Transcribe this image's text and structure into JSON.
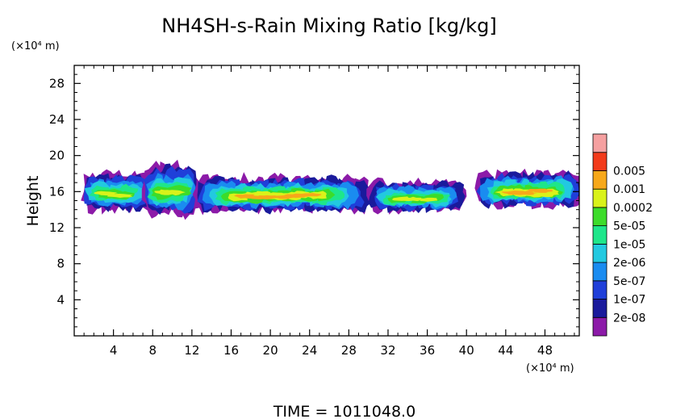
{
  "chart_data": {
    "type": "heatmap",
    "title": "NH4SH-s-Rain Mixing Ratio [kg/kg]",
    "ylabel": "Height",
    "y_unit": "(×10⁴ m)",
    "x_unit": "(×10⁴ m)",
    "xlim": [
      0,
      51.5
    ],
    "ylim": [
      0,
      30
    ],
    "x_ticks": [
      4,
      8,
      12,
      16,
      20,
      24,
      28,
      32,
      36,
      40,
      44,
      48
    ],
    "y_ticks": [
      4,
      8,
      12,
      16,
      20,
      24,
      28
    ],
    "colorbar": {
      "levels": [
        "2e-08",
        "1e-07",
        "5e-07",
        "2e-06",
        "1e-05",
        "5e-05",
        "0.0002",
        "0.001",
        "0.005"
      ],
      "colors": [
        "#8c1aa8",
        "#1a1a9c",
        "#1f3fd9",
        "#1a8cf0",
        "#22c9e0",
        "#1ee68a",
        "#3cdc2a",
        "#d9f21a",
        "#f7a81a",
        "#f23a1a",
        "#f5a0a0"
      ]
    },
    "clouds": [
      {
        "x": [
          1.2,
          7.5
        ],
        "y_bottom": 14.0,
        "y_top": 18.5,
        "peak_level": "5e-05"
      },
      {
        "x": [
          7.5,
          12.5
        ],
        "y_bottom": 13.5,
        "y_top": 19.5,
        "peak_level": "5e-05"
      },
      {
        "x": [
          12.5,
          30.0
        ],
        "y_bottom": 14.0,
        "y_top": 18.0,
        "peak_level": "0.0002"
      },
      {
        "x": [
          30.5,
          39.5
        ],
        "y_bottom": 14.0,
        "y_top": 17.5,
        "peak_level": "5e-05"
      },
      {
        "x": [
          41.5,
          51.5
        ],
        "y_bottom": 14.5,
        "y_top": 18.5,
        "peak_level": "0.0002"
      }
    ],
    "footer": "TIME = 1011048.0"
  }
}
